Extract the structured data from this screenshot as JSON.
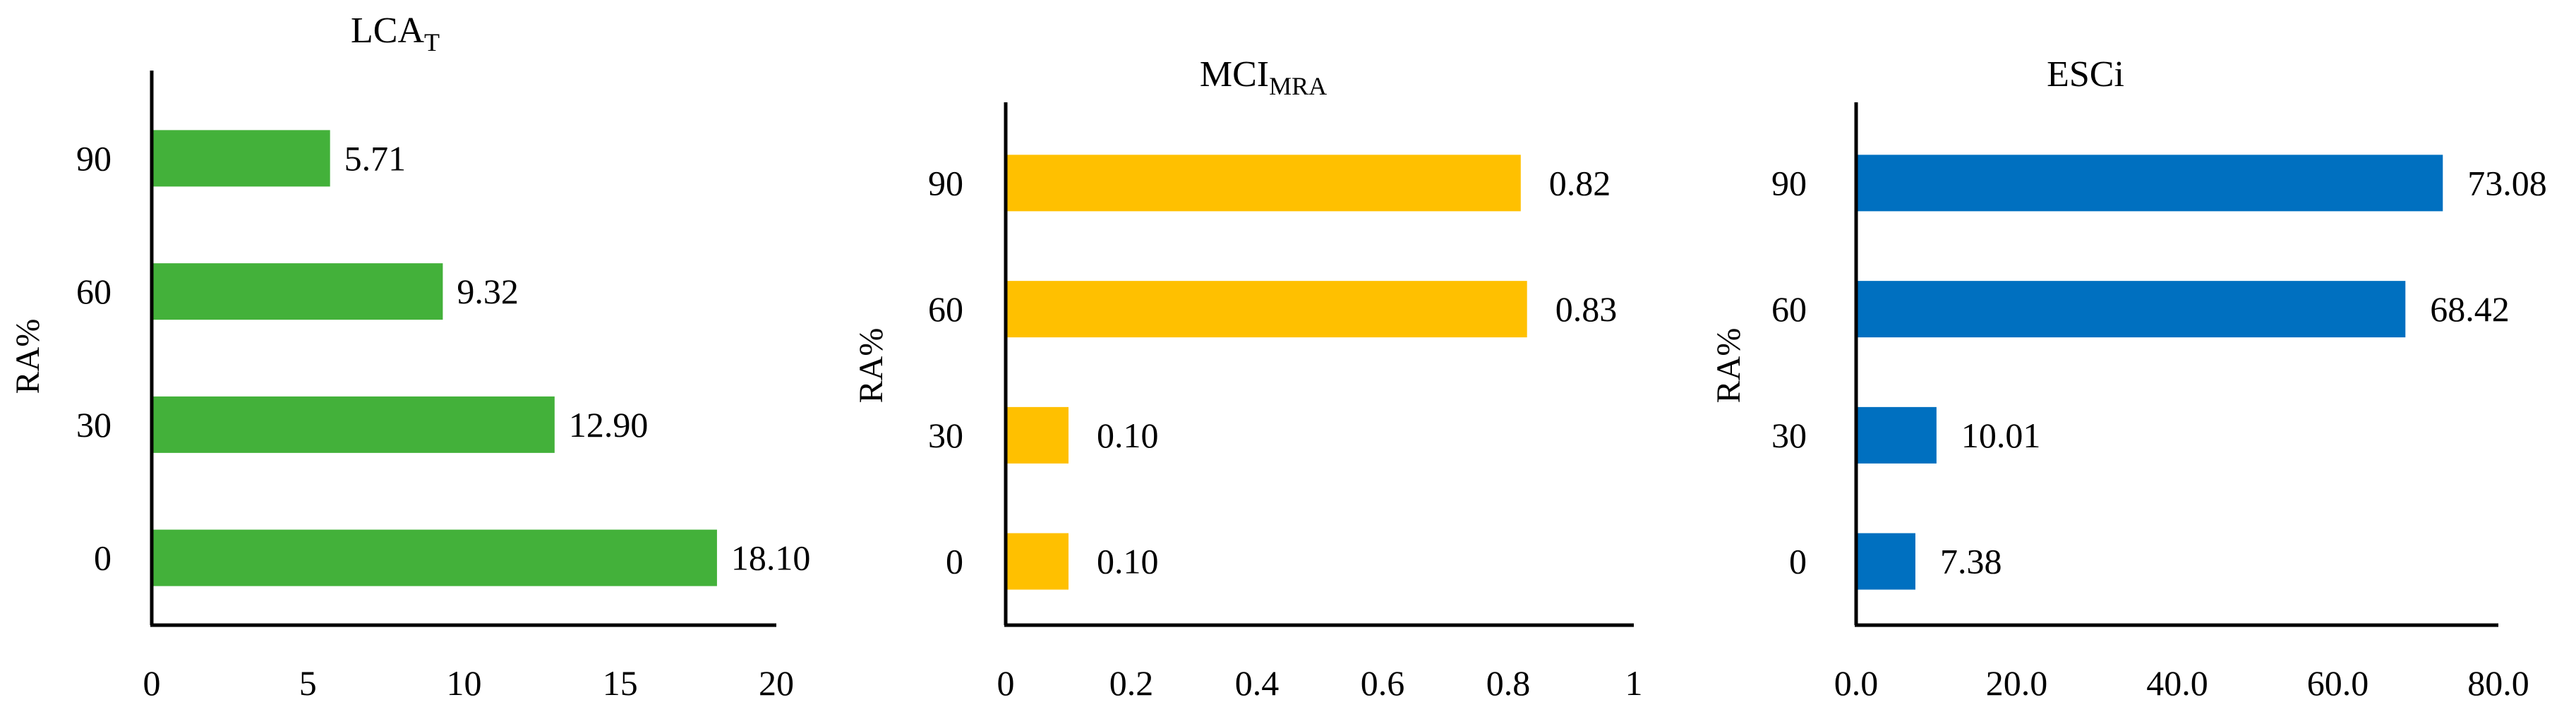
{
  "chart_data": [
    {
      "type": "bar",
      "orientation": "horizontal",
      "title": "LCA",
      "title_subscript": "T",
      "ylabel": "RA%",
      "xlabel": "",
      "categories": [
        "0",
        "30",
        "60",
        "90"
      ],
      "values": [
        18.1,
        12.9,
        9.32,
        5.71
      ],
      "value_labels": [
        "18.10",
        "12.90",
        "9.32",
        "5.71"
      ],
      "xlim": [
        0,
        20
      ],
      "xticks": [
        "0",
        "5",
        "10",
        "15",
        "20"
      ],
      "color": "#43B13A",
      "grid": false,
      "legend": "none"
    },
    {
      "type": "bar",
      "orientation": "horizontal",
      "title": "MCI",
      "title_subscript": "MRA",
      "ylabel": "RA%",
      "xlabel": "",
      "categories": [
        "0",
        "30",
        "60",
        "90"
      ],
      "values": [
        0.1,
        0.1,
        0.83,
        0.82
      ],
      "value_labels": [
        "0.10",
        "0.10",
        "0.83",
        "0.82"
      ],
      "xlim": [
        0,
        1
      ],
      "xticks": [
        "0",
        "0.2",
        "0.4",
        "0.6",
        "0.8",
        "1"
      ],
      "color": "#FFC000",
      "grid": false,
      "legend": "none"
    },
    {
      "type": "bar",
      "orientation": "horizontal",
      "title": "ESCi",
      "title_subscript": "",
      "ylabel": "RA%",
      "xlabel": "",
      "categories": [
        "0",
        "30",
        "60",
        "90"
      ],
      "values": [
        7.38,
        10.01,
        68.42,
        73.08
      ],
      "value_labels": [
        "7.38",
        "10.01",
        "68.42",
        "73.08"
      ],
      "xlim": [
        0,
        80
      ],
      "xticks": [
        "0.0",
        "20.0",
        "40.0",
        "60.0",
        "80.0"
      ],
      "color": "#0070C0",
      "grid": false,
      "legend": "none"
    }
  ]
}
